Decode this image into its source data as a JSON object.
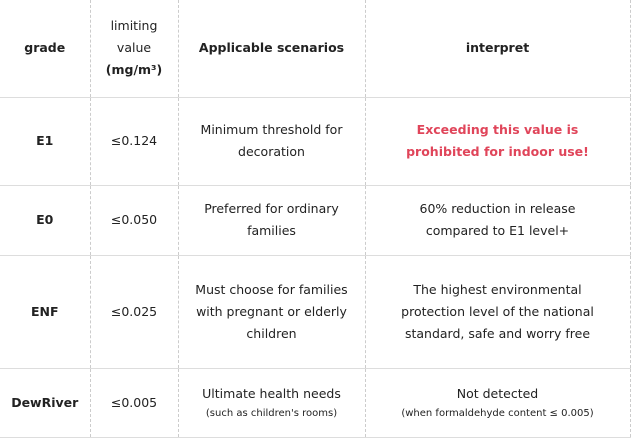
{
  "table": {
    "header": [
      "grade",
      "limiting value",
      "Applicable scenarios",
      "interpret"
    ],
    "unit": "(mg/m³)",
    "rows": [
      {
        "grade": "E1",
        "limit": "≤0.124",
        "scenario": "Minimum threshold for decoration",
        "interpret": "Exceeding this value is prohibited for indoor use!"
      },
      {
        "grade": "E0",
        "limit": "≤0.050",
        "scenario": "Preferred for ordinary families",
        "interpret": "60% reduction in release compared to E1 level+"
      },
      {
        "grade": "ENF",
        "limit": "≤0.025",
        "scenario": "Must choose for families with pregnant or elderly children",
        "interpret": "The highest environmental protection level of the national standard, safe and worry free"
      },
      {
        "grade": "DewRiver",
        "limit": "≤0.005",
        "scenario": "Ultimate health needs",
        "scenario_note": "(such as children's rooms)",
        "interpret": "Not detected",
        "interpret_note": "(when formaldehyde content ≤ 0.005)"
      }
    ]
  }
}
